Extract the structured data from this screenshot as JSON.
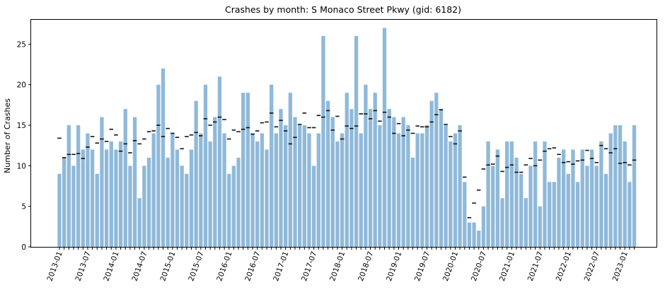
{
  "chart_data": {
    "type": "bar",
    "title": "Crashes by month: S Monaco Street Pkwy (gid: 6182)",
    "xlabel": "",
    "ylabel": "Number of Crashes",
    "ylim": [
      0,
      28
    ],
    "yticks": [
      0,
      5,
      10,
      15,
      20,
      25
    ],
    "grid": false,
    "bar_color": "#8fb9d9",
    "marker_color": "#111111",
    "x_tick_labels": [
      "2013-01",
      "2013-07",
      "2014-01",
      "2014-07",
      "2015-01",
      "2015-07",
      "2016-01",
      "2016-07",
      "2017-01",
      "2017-07",
      "2018-01",
      "2018-07",
      "2019-01",
      "2019-07",
      "2020-01",
      "2020-07",
      "2021-01",
      "2021-07",
      "2022-01",
      "2022-07",
      "2023-01"
    ],
    "series": [
      {
        "values": [
          9,
          11,
          15,
          10,
          15,
          12,
          14,
          12,
          9,
          16,
          12,
          13,
          12,
          13,
          17,
          10,
          16,
          6,
          10,
          11,
          14,
          20,
          22,
          11,
          14,
          12,
          10,
          9,
          12,
          18,
          14,
          20,
          13,
          16,
          21,
          14,
          9,
          10,
          11,
          19,
          19,
          14,
          13,
          14,
          12,
          20,
          14,
          17,
          15,
          19,
          16,
          15,
          15,
          14,
          10,
          14,
          26,
          18,
          16,
          13,
          14,
          19,
          17,
          26,
          14,
          20,
          17,
          19,
          15,
          27,
          17,
          16,
          14,
          16,
          15,
          11,
          14,
          14,
          15,
          18,
          19,
          17,
          15,
          13,
          14,
          15,
          8,
          3,
          3,
          2,
          5,
          13,
          10,
          12,
          6,
          13,
          13,
          11,
          9,
          6,
          10,
          13,
          5,
          13,
          8,
          8,
          11,
          12,
          9,
          12,
          8,
          12,
          10,
          12,
          10,
          13,
          9,
          14,
          15,
          15,
          13,
          8,
          15
        ]
      },
      {
        "values": [
          13.4,
          11.0,
          11.4,
          11.4,
          11.5,
          10.9,
          12.3,
          13.6,
          12.8,
          13.3,
          13.0,
          14.5,
          13.8,
          11.8,
          12.7,
          11.6,
          13.1,
          12.7,
          13.3,
          14.2,
          14.3,
          15.0,
          13.6,
          14.6,
          14.0,
          13.5,
          12.1,
          13.6,
          13.8,
          14.1,
          13.7,
          15.8,
          15.0,
          15.4,
          16.0,
          15.7,
          13.3,
          14.4,
          14.2,
          14.5,
          14.7,
          13.9,
          14.3,
          15.3,
          15.4,
          16.5,
          14.8,
          15.6,
          14.3,
          12.7,
          13.5,
          15.1,
          16.5,
          14.7,
          14.7,
          16.2,
          16.0,
          16.8,
          14.4,
          16.1,
          13.3,
          14.9,
          14.6,
          14.9,
          16.4,
          16.4,
          15.8,
          16.8,
          15.5,
          16.6,
          16.0,
          14.0,
          15.2,
          13.7,
          14.4,
          14.0,
          14.9,
          14.8,
          14.8,
          15.4,
          16.3,
          16.9,
          15.1,
          13.6,
          12.7,
          14.3,
          8.6,
          3.6,
          5.4,
          7.0,
          9.6,
          10.1,
          10.2,
          11.2,
          9.3,
          9.8,
          10.1,
          9.2,
          9.2,
          10.1,
          10.9,
          10.0,
          10.7,
          11.8,
          12.1,
          12.2,
          11.4,
          10.4,
          10.5,
          10.2,
          10.6,
          10.7,
          11.9,
          10.9,
          10.4,
          12.5,
          12.1,
          11.6,
          12.1,
          10.3,
          10.4,
          10.1,
          10.7
        ]
      }
    ]
  }
}
